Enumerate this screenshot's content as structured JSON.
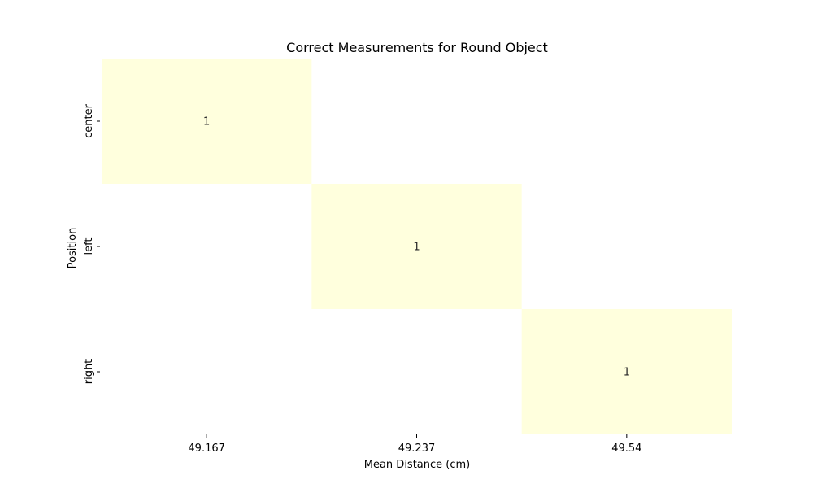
{
  "chart_data": {
    "type": "heatmap",
    "title": "Correct Measurements for Round Object",
    "xlabel": "Mean Distance (cm)",
    "ylabel": "Position",
    "x_categories": [
      "49.167",
      "49.237",
      "49.54"
    ],
    "y_categories": [
      "center",
      "left",
      "right"
    ],
    "cells": [
      {
        "x": "49.167",
        "y": "center",
        "value": 1
      },
      {
        "x": "49.237",
        "y": "left",
        "value": 1
      },
      {
        "x": "49.54",
        "y": "right",
        "value": 1
      }
    ],
    "annotate": true,
    "colorbar": false,
    "fill_color": "#ffffdd",
    "background_color": "#ffffff"
  }
}
